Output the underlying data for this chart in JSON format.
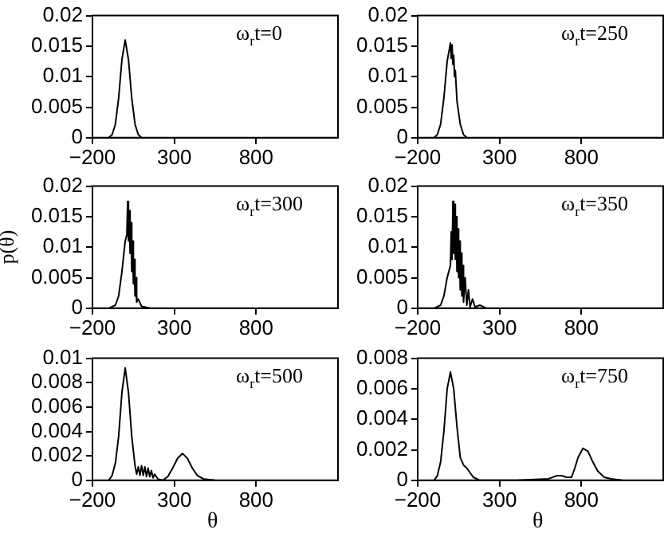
{
  "chart_data": [
    {
      "type": "line",
      "annotations": [
        "ω$_{r}$t=0"
      ],
      "x": [
        -100,
        -80,
        -60,
        -40,
        -20,
        0,
        20,
        40,
        60,
        80,
        100
      ],
      "series": [
        {
          "color": "#000000",
          "values": [
            0,
            0.0005,
            0.0022,
            0.0065,
            0.0128,
            0.016,
            0.0128,
            0.0065,
            0.0022,
            0.0005,
            0
          ]
        }
      ],
      "xlim": [
        -200,
        1300
      ],
      "xticks": [
        -200,
        300,
        800
      ],
      "ylim": [
        0,
        0.02
      ],
      "yticks": [
        0,
        0.005,
        0.01,
        0.015,
        0.02
      ],
      "grid": false,
      "legend": false,
      "marker": "none"
    },
    {
      "type": "line",
      "annotations": [
        "ω$_{r}$t=250"
      ],
      "x": [
        -100,
        -80,
        -60,
        -40,
        -20,
        0,
        5,
        10,
        15,
        20,
        25,
        30,
        40,
        60,
        80,
        100
      ],
      "series": [
        {
          "color": "#000000",
          "values": [
            0,
            0.0005,
            0.0022,
            0.0065,
            0.0125,
            0.0155,
            0.013,
            0.0152,
            0.012,
            0.0135,
            0.01,
            0.011,
            0.006,
            0.0022,
            0.0005,
            0
          ]
        }
      ],
      "xlim": [
        -200,
        1300
      ],
      "xticks": [
        -200,
        300,
        800
      ],
      "ylim": [
        0,
        0.02
      ],
      "yticks": [
        0,
        0.005,
        0.01,
        0.015,
        0.02
      ],
      "grid": false,
      "legend": false,
      "marker": "none"
    },
    {
      "type": "line",
      "annotations": [
        "ω$_{r}$t=300"
      ],
      "x": [
        -100,
        -60,
        -40,
        -20,
        0,
        10,
        15,
        20,
        25,
        30,
        35,
        40,
        45,
        50,
        55,
        60,
        65,
        70,
        80,
        100,
        150
      ],
      "series": [
        {
          "color": "#000000",
          "values": [
            0,
            0.0005,
            0.002,
            0.006,
            0.011,
            0.012,
            0.0175,
            0.011,
            0.016,
            0.009,
            0.014,
            0.006,
            0.011,
            0.004,
            0.008,
            0.002,
            0.005,
            0.001,
            0.0015,
            0.0003,
            0
          ]
        }
      ],
      "xlim": [
        -200,
        1300
      ],
      "xticks": [
        -200,
        300,
        800
      ],
      "ylim": [
        0,
        0.02
      ],
      "yticks": [
        0,
        0.005,
        0.01,
        0.015,
        0.02
      ],
      "ylabel": "p(θ)",
      "grid": false,
      "legend": false,
      "marker": "none"
    },
    {
      "type": "line",
      "annotations": [
        "ω$_{r}$t=350"
      ],
      "x": [
        -100,
        -60,
        -40,
        -20,
        0,
        5,
        10,
        15,
        20,
        25,
        30,
        35,
        40,
        45,
        50,
        55,
        60,
        65,
        70,
        75,
        80,
        90,
        100,
        110,
        120,
        135,
        150,
        180,
        220
      ],
      "series": [
        {
          "color": "#000000",
          "values": [
            0,
            0.0005,
            0.002,
            0.005,
            0.007,
            0.0125,
            0.008,
            0.0175,
            0.009,
            0.017,
            0.008,
            0.015,
            0.006,
            0.013,
            0.005,
            0.011,
            0.003,
            0.009,
            0.002,
            0.007,
            0.001,
            0.005,
            0.0005,
            0.003,
            0.0002,
            0.0015,
            0.0002,
            0.0005,
            0
          ]
        }
      ],
      "xlim": [
        -200,
        1300
      ],
      "xticks": [
        -200,
        300,
        800
      ],
      "ylim": [
        0,
        0.02
      ],
      "yticks": [
        0,
        0.005,
        0.01,
        0.015,
        0.02
      ],
      "grid": false,
      "legend": false,
      "marker": "none"
    },
    {
      "type": "line",
      "annotations": [
        "ω$_{r}$t=500"
      ],
      "xlabel": "θ",
      "x": [
        -100,
        -80,
        -60,
        -40,
        -20,
        0,
        20,
        40,
        60,
        70,
        80,
        90,
        100,
        110,
        120,
        130,
        140,
        150,
        160,
        170,
        180,
        200,
        230,
        260,
        290,
        320,
        350,
        380,
        410,
        440,
        480,
        550
      ],
      "series": [
        {
          "color": "#000000",
          "values": [
            0,
            0.0004,
            0.0014,
            0.0036,
            0.0072,
            0.0092,
            0.0072,
            0.0036,
            0.0012,
            0.0005,
            0.0011,
            0.0004,
            0.0012,
            0.0004,
            0.0011,
            0.0003,
            0.001,
            0.0003,
            0.0008,
            0.0002,
            0.0005,
            0.0001,
            0,
            0.0003,
            0.001,
            0.0018,
            0.0022,
            0.0018,
            0.001,
            0.0004,
            0.0001,
            0
          ]
        }
      ],
      "xlim": [
        -200,
        1300
      ],
      "xticks": [
        -200,
        300,
        800
      ],
      "ylim": [
        0,
        0.01
      ],
      "yticks": [
        0,
        0.002,
        0.004,
        0.006,
        0.008,
        0.01
      ],
      "grid": false,
      "legend": false,
      "marker": "none"
    },
    {
      "type": "line",
      "annotations": [
        "ω$_{r}$t=750"
      ],
      "xlabel": "θ",
      "x": [
        -100,
        -80,
        -60,
        -40,
        -20,
        0,
        20,
        40,
        60,
        80,
        100,
        120,
        140,
        180,
        250,
        400,
        600,
        650,
        680,
        710,
        740,
        760,
        780,
        810,
        840,
        870,
        900,
        940,
        980,
        1050
      ],
      "series": [
        {
          "color": "#000000",
          "values": [
            0,
            0.0003,
            0.0012,
            0.0032,
            0.006,
            0.0071,
            0.006,
            0.0035,
            0.0015,
            0.001,
            0.0008,
            0.0005,
            0.0002,
            0,
            0,
            0,
            0.0001,
            0.0003,
            0.0003,
            0.0002,
            0.0002,
            0.0008,
            0.0015,
            0.0021,
            0.0019,
            0.0012,
            0.0006,
            0.0002,
            0.0001,
            0
          ]
        }
      ],
      "xlim": [
        -200,
        1300
      ],
      "xticks": [
        -200,
        300,
        800
      ],
      "ylim": [
        0,
        0.008
      ],
      "yticks": [
        0,
        0.002,
        0.004,
        0.006,
        0.008
      ],
      "grid": false,
      "legend": false,
      "marker": "none"
    }
  ]
}
